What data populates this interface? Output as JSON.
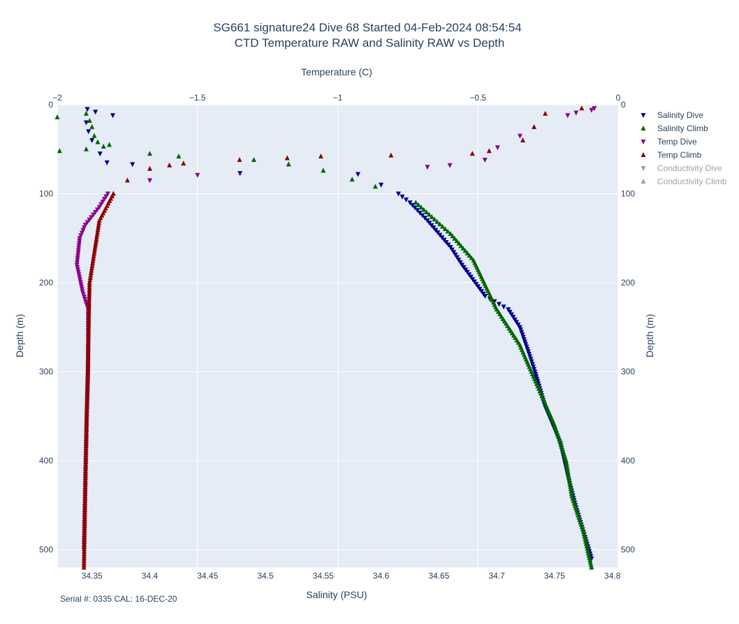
{
  "chart_data": {
    "type": "scatter",
    "title": "SG661 signature24 Dive 68 Started 04-Feb-2024 08:54:54",
    "subtitle": "CTD Temperature RAW and Salinity RAW vs Depth",
    "x_top_label": "Temperature (C)",
    "x_bottom_label": "Salinity (PSU)",
    "y_label": "Depth (m)",
    "ylim": [
      520,
      0
    ],
    "xlim_temperature": [
      -2,
      0
    ],
    "xlim_salinity": [
      34.32,
      34.805
    ],
    "y_ticks": [
      0,
      100,
      200,
      300,
      400,
      500
    ],
    "temperature_ticks": [
      -2,
      -1.5,
      -1,
      -0.5,
      0
    ],
    "temperature_tick_labels": [
      "−2",
      "−1.5",
      "−1",
      "−0.5",
      "0"
    ],
    "salinity_ticks": [
      34.35,
      34.4,
      34.45,
      34.5,
      34.55,
      34.6,
      34.65,
      34.7,
      34.75,
      34.8
    ],
    "salinity_tick_labels": [
      "34.35",
      "34.4",
      "34.45",
      "34.5",
      "34.55",
      "34.6",
      "34.65",
      "34.7",
      "34.75",
      "34.8"
    ],
    "grid": true,
    "legend_position": "right",
    "legend": [
      {
        "name": "Salinity Dive",
        "color": "#00008b",
        "marker": "triangle-down",
        "visible": true
      },
      {
        "name": "Salinity Climb",
        "color": "#006400",
        "marker": "triangle-up",
        "visible": true
      },
      {
        "name": "Temp Dive",
        "color": "#8b008b",
        "marker": "triangle-down",
        "visible": true
      },
      {
        "name": "Temp Climb",
        "color": "#8b0000",
        "marker": "triangle-up",
        "visible": true
      },
      {
        "name": "Conductivity Dive",
        "color": "#a0a0a0",
        "marker": "triangle-down",
        "visible": false
      },
      {
        "name": "Conductivity Climb",
        "color": "#a0a0a0",
        "marker": "triangle-up",
        "visible": false
      }
    ],
    "series": [
      {
        "name": "Salinity Dive",
        "axis": "salinity",
        "color": "#00008b",
        "marker": "triangle-down",
        "x": [
          34.346,
          34.353,
          34.368,
          34.345,
          34.347,
          34.35,
          34.357,
          34.363,
          34.385,
          34.478,
          34.58,
          34.6,
          34.615,
          34.625,
          34.64,
          34.66,
          34.67,
          34.69,
          34.71,
          34.72,
          34.728,
          34.733,
          34.742,
          34.755,
          34.762,
          34.768,
          34.775,
          34.782
        ],
        "y": [
          5,
          8,
          12,
          20,
          30,
          40,
          55,
          65,
          67,
          77,
          78,
          90,
          100,
          110,
          130,
          160,
          180,
          215,
          230,
          250,
          280,
          300,
          340,
          380,
          420,
          450,
          480,
          510
        ]
      },
      {
        "name": "Salinity Climb",
        "axis": "salinity",
        "color": "#006400",
        "marker": "triangle-up",
        "x": [
          34.32,
          34.345,
          34.348,
          34.35,
          34.352,
          34.355,
          34.36,
          34.365,
          34.345,
          34.322,
          34.4,
          34.425,
          34.49,
          34.52,
          34.55,
          34.575,
          34.595,
          34.63,
          34.66,
          34.68,
          34.7,
          34.72,
          34.73,
          34.74,
          34.75,
          34.76,
          34.765,
          34.775,
          34.782
        ],
        "y": [
          14,
          10,
          18,
          25,
          35,
          42,
          47,
          45,
          50,
          52,
          55,
          58,
          62,
          67,
          74,
          84,
          92,
          110,
          145,
          175,
          230,
          270,
          300,
          330,
          360,
          400,
          440,
          480,
          520
        ]
      },
      {
        "name": "Temp Dive",
        "axis": "temperature",
        "color": "#8b008b",
        "marker": "triangle-down",
        "x": [
          -0.085,
          -0.095,
          -0.15,
          -0.18,
          -0.35,
          -0.43,
          -0.475,
          -0.6,
          -0.68,
          -1.5,
          -1.67,
          -1.82,
          -1.85,
          -1.9,
          -1.92,
          -1.93,
          -1.91,
          -1.89,
          -1.89,
          -1.895,
          -1.9,
          -1.905
        ],
        "y": [
          4,
          6,
          9,
          12,
          35,
          48,
          62,
          68,
          70,
          79,
          85,
          100,
          115,
          135,
          150,
          180,
          210,
          230,
          300,
          350,
          420,
          500
        ]
      },
      {
        "name": "Temp Climb",
        "axis": "temperature",
        "color": "#8b0000",
        "marker": "triangle-up",
        "x": [
          -0.13,
          -0.26,
          -0.3,
          -0.34,
          -0.46,
          -0.52,
          -0.81,
          -1.06,
          -1.18,
          -1.35,
          -1.55,
          -1.6,
          -1.67,
          -1.75,
          -1.8,
          -1.85,
          -1.87,
          -1.885,
          -1.89,
          -1.895,
          -1.9,
          -1.905
        ],
        "y": [
          4,
          10,
          25,
          40,
          52,
          55,
          57,
          58,
          60,
          62,
          66,
          68,
          72,
          85,
          100,
          130,
          170,
          200,
          280,
          350,
          430,
          520
        ]
      }
    ],
    "footer": "Serial #: 0335  CAL: 16-DEC-20"
  }
}
